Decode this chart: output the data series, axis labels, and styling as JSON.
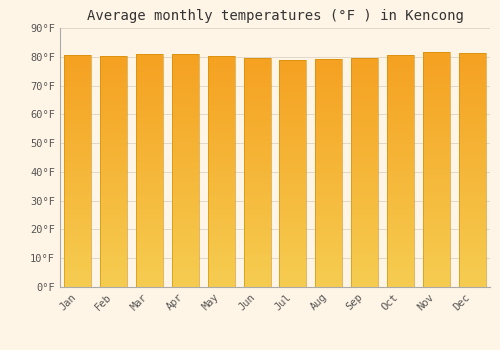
{
  "title": "Average monthly temperatures (°F ) in Kencong",
  "months": [
    "Jan",
    "Feb",
    "Mar",
    "Apr",
    "May",
    "Jun",
    "Jul",
    "Aug",
    "Sep",
    "Oct",
    "Nov",
    "Dec"
  ],
  "values": [
    80.6,
    80.2,
    80.8,
    81.1,
    80.4,
    79.7,
    79.0,
    79.3,
    79.7,
    80.5,
    81.7,
    81.3
  ],
  "ylim": [
    0,
    90
  ],
  "yticks": [
    0,
    10,
    20,
    30,
    40,
    50,
    60,
    70,
    80,
    90
  ],
  "bar_color_top": "#F5A020",
  "bar_color_bottom": "#F5CC50",
  "bar_edge_color": "#CC8800",
  "background_color": "#FFF5E6",
  "grid_color": "#E0D8CC",
  "title_fontsize": 10,
  "tick_fontsize": 7.5,
  "bar_width": 0.75
}
